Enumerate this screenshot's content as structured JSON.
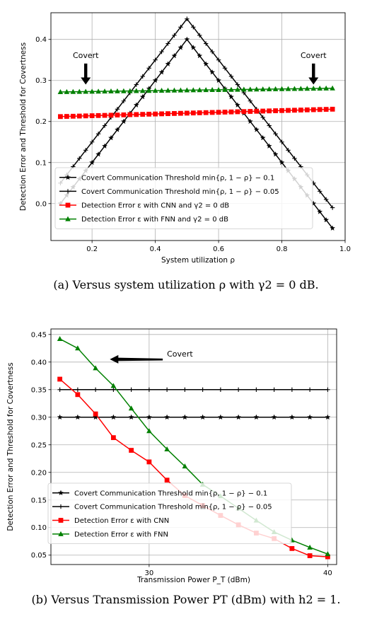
{
  "chart_data": [
    {
      "type": "line",
      "xlabel": "System utilization ρ",
      "ylabel": "Detection Error and Threshold for Covertness",
      "xlim": [
        0.07,
        1.0
      ],
      "ylim": [
        -0.09,
        0.465
      ],
      "xticks": [
        0.2,
        0.4,
        0.6,
        0.8,
        1.0
      ],
      "xtick_labels": [
        "0.2",
        "0.4",
        "0.6",
        "0.8",
        "1.0"
      ],
      "yticks": [
        0.0,
        0.1,
        0.2,
        0.3,
        0.4
      ],
      "ytick_labels": [
        "0.0",
        "0.1",
        "0.2",
        "0.3",
        "0.4"
      ],
      "grid": true,
      "legend_position": "lower-left",
      "annotations": [
        {
          "text": "Covert",
          "arrow": "down",
          "x": 0.18,
          "y_text": 0.355,
          "y_arrow_tip": 0.29
        },
        {
          "text": "Covert",
          "arrow": "down",
          "x": 0.9,
          "y_text": 0.355,
          "y_arrow_tip": 0.29
        }
      ],
      "series": [
        {
          "name": "Covert Communication Threshold min{ρ, 1 − ρ} − 0.1",
          "color": "#000000",
          "marker": "star",
          "x": [
            0.1,
            0.5,
            0.96
          ],
          "values": [
            0.0,
            0.4,
            -0.06
          ]
        },
        {
          "name": "Covert Communication Threshold min{ρ, 1 − ρ} − 0.05",
          "color": "#000000",
          "marker": "plus",
          "x": [
            0.1,
            0.5,
            0.96
          ],
          "values": [
            0.05,
            0.45,
            -0.01
          ]
        },
        {
          "name": "Detection Error ε with CNN and γ2 = 0 dB",
          "color": "#ff0000",
          "marker": "square",
          "x": [
            0.1,
            0.96
          ],
          "values": [
            0.212,
            0.23
          ]
        },
        {
          "name": "Detection Error ε with FNN and γ2 = 0 dB",
          "color": "#008000",
          "marker": "triangle",
          "x": [
            0.1,
            0.96
          ],
          "values": [
            0.272,
            0.281
          ]
        }
      ]
    },
    {
      "type": "line",
      "xlabel": "Transmission Power P_T (dBm)",
      "ylabel": "Detection Error and Threshold for Covertness",
      "xlim": [
        24.5,
        40.5
      ],
      "ylim": [
        0.033,
        0.46
      ],
      "xticks": [
        30,
        40
      ],
      "xtick_labels": [
        "30",
        "40"
      ],
      "yticks": [
        0.05,
        0.1,
        0.15,
        0.2,
        0.25,
        0.3,
        0.35,
        0.4,
        0.45
      ],
      "ytick_labels": [
        "0.05",
        "0.10",
        "0.15",
        "0.20",
        "0.25",
        "0.30",
        "0.35",
        "0.40",
        "0.45"
      ],
      "grid": true,
      "legend_position": "lower-left",
      "annotations": [
        {
          "text": "Covert",
          "arrow": "left",
          "x_text": 31,
          "y": 0.405,
          "x_arrow_tip": 27.8
        }
      ],
      "x": [
        25,
        26,
        27,
        28,
        29,
        30,
        31,
        32,
        33,
        34,
        35,
        36,
        37,
        38,
        39,
        40
      ],
      "series": [
        {
          "name": "Covert Communication Threshold min{ρ, 1 − ρ} − 0.1",
          "color": "#000000",
          "marker": "star",
          "values": [
            0.3,
            0.3,
            0.3,
            0.3,
            0.3,
            0.3,
            0.3,
            0.3,
            0.3,
            0.3,
            0.3,
            0.3,
            0.3,
            0.3,
            0.3,
            0.3
          ]
        },
        {
          "name": "Covert Communication Threshold min{ρ, 1 − ρ} − 0.05",
          "color": "#000000",
          "marker": "plus",
          "values": [
            0.35,
            0.35,
            0.35,
            0.35,
            0.35,
            0.35,
            0.35,
            0.35,
            0.35,
            0.35,
            0.35,
            0.35,
            0.35,
            0.35,
            0.35,
            0.35
          ]
        },
        {
          "name": "Detection Error ε with CNN",
          "color": "#ff0000",
          "marker": "square",
          "values": [
            0.369,
            0.341,
            0.306,
            0.263,
            0.24,
            0.219,
            0.186,
            0.158,
            0.14,
            0.122,
            0.105,
            0.09,
            0.08,
            0.062,
            0.049,
            0.047
          ]
        },
        {
          "name": "Detection Error ε with FNN",
          "color": "#008000",
          "marker": "triangle",
          "values": [
            0.442,
            0.425,
            0.389,
            0.357,
            0.316,
            0.275,
            0.242,
            0.211,
            0.178,
            0.157,
            0.135,
            0.113,
            0.092,
            0.077,
            0.064,
            0.052
          ]
        }
      ]
    }
  ],
  "captions": {
    "a": "(a) Versus system utilization ρ with γ2 = 0 dB.",
    "b": "(b) Versus Transmission Power PT (dBm) with h2 = 1."
  }
}
